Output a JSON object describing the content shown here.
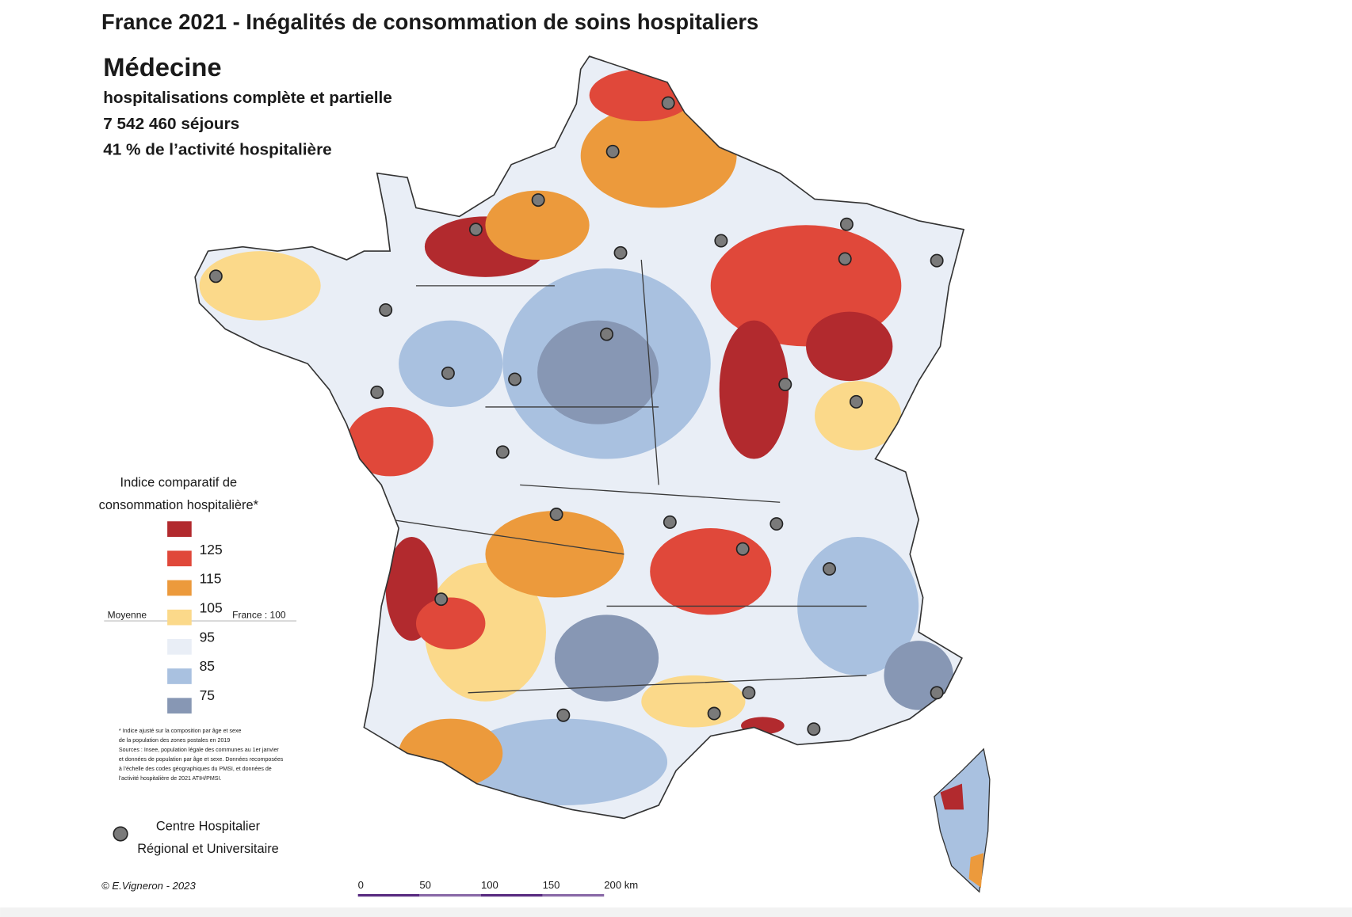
{
  "title": "France 2021 - Inégalités de consommation de soins hospitaliers",
  "heading": "Médecine",
  "subtitle_lines": [
    "hospitalisations complète et partielle",
    "7 542 460 séjours",
    "41 % de l’activité hospitalière"
  ],
  "legend": {
    "title_lines": [
      "Indice comparatif de",
      "consommation hospitalière*"
    ],
    "classes": [
      {
        "color": "#b22a2e"
      },
      {
        "color": "#e0483a"
      },
      {
        "color": "#ec9a3c"
      },
      {
        "color": "#fbd98a"
      },
      {
        "color": "#e9eef6"
      },
      {
        "color": "#a9c1e0"
      },
      {
        "color": "#8797b4"
      }
    ],
    "breaks": [
      "125",
      "115",
      "105",
      "95",
      "85",
      "75"
    ],
    "mean_left": "Moyenne",
    "mean_right": "France : 100"
  },
  "note_lines": [
    "* Indice ajusté sur la composition par âge et sexe",
    "de la population des zones postales en 2019",
    "Sources : Insee, population légale des communes au 1er janvier",
    "et données de population par âge et sexe. Données recomposées",
    "à l’échelle des codes géographiques du PMSI, et données de",
    "l’activité hospitalière de 2021 ATIH/PMSI."
  ],
  "chu_legend": [
    "Centre Hospitalier",
    "Régional et Universitaire"
  ],
  "credit": "© E.Vigneron - 2023",
  "scale_labels": [
    "0",
    "50",
    "100",
    "150",
    "200 km"
  ]
}
